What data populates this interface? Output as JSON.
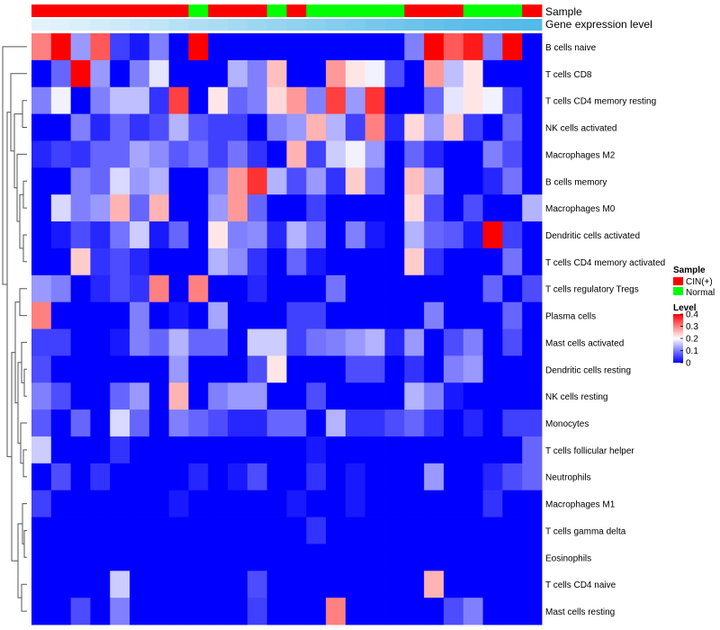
{
  "chart_data": {
    "type": "heatmap",
    "annotation_tracks": [
      "Sample",
      "Gene expression level"
    ],
    "legends": {
      "sample": {
        "title": "Sample",
        "entries": [
          {
            "label": "CIN(+)",
            "color": "#ff0000"
          },
          {
            "label": "Normal",
            "color": "#00ff00"
          }
        ]
      },
      "level": {
        "title": "Level",
        "ticks": [
          "0.4",
          "0.3",
          "0.2",
          "0.1",
          "0"
        ],
        "tick_values": [
          0.4,
          0.3,
          0.2,
          0.1,
          0
        ],
        "range": [
          0,
          0.4
        ],
        "colors": {
          "low": "#0000ff",
          "mid": "#ffffff",
          "high": "#ff0000"
        }
      }
    },
    "sample_groups": [
      "CIN",
      "CIN",
      "CIN",
      "CIN",
      "CIN",
      "CIN",
      "CIN",
      "CIN",
      "Normal",
      "CIN",
      "CIN",
      "CIN",
      "Normal",
      "CIN",
      "Normal",
      "Normal",
      "Normal",
      "Normal",
      "Normal",
      "CIN",
      "CIN",
      "CIN",
      "Normal",
      "Normal",
      "Normal",
      "CIN"
    ],
    "gene_expression_level": [
      0.05,
      0.08,
      0.12,
      0.16,
      0.2,
      0.25,
      0.3,
      0.35,
      0.4,
      0.44,
      0.48,
      0.52,
      0.56,
      0.6,
      0.64,
      0.68,
      0.72,
      0.76,
      0.8,
      0.84,
      0.88,
      0.92,
      0.95,
      0.97,
      0.99,
      1.0
    ],
    "rows": [
      "B cells naive",
      "T cells CD8",
      "T cells CD4 memory resting",
      "NK cells activated",
      "Macrophages M2",
      "B cells memory",
      "Macrophages M0",
      "Dendritic cells activated",
      "T cells CD4 memory activated",
      "T cells regulatory  Tregs",
      "Plasma cells",
      "Mast cells activated",
      "Dendritic cells resting",
      "NK cells resting",
      "Monocytes",
      "T cells follicular helper",
      "Neutrophils",
      "Macrophages M1",
      "T cells gamma delta",
      "Eosinophils",
      "T cells CD4 naive",
      "Mast cells resting"
    ],
    "values": [
      [
        0.3,
        0.4,
        0.12,
        0.33,
        0.05,
        0.02,
        0.1,
        0,
        0.4,
        0,
        0,
        0,
        0,
        0,
        0,
        0,
        0,
        0,
        0,
        0.1,
        0.4,
        0.33,
        0.38,
        0.1,
        0.4,
        0
      ],
      [
        0,
        0.08,
        0.4,
        0.12,
        0,
        0.1,
        0.18,
        0,
        0,
        0,
        0.14,
        0.1,
        0.25,
        0,
        0,
        0.28,
        0.22,
        0.19,
        0.06,
        0,
        0.28,
        0.15,
        0.22,
        0,
        0,
        0
      ],
      [
        0.1,
        0.19,
        0,
        0.1,
        0.15,
        0.15,
        0.04,
        0.35,
        0,
        0.22,
        0.08,
        0.1,
        0.23,
        0.28,
        0.1,
        0.35,
        0.12,
        0.36,
        0,
        0,
        0.08,
        0.18,
        0.22,
        0.19,
        0.05,
        0
      ],
      [
        0,
        0,
        0.1,
        0.03,
        0.08,
        0.04,
        0.06,
        0.14,
        0.07,
        0.05,
        0.05,
        0,
        0.1,
        0.12,
        0.26,
        0.14,
        0.05,
        0.3,
        0.03,
        0.23,
        0.12,
        0.24,
        0.05,
        0,
        0.08,
        0
      ],
      [
        0.03,
        0.05,
        0.04,
        0.08,
        0.08,
        0.13,
        0.11,
        0.07,
        0.09,
        0.05,
        0.09,
        0.04,
        0,
        0.26,
        0.05,
        0.16,
        0.19,
        0.12,
        0,
        0.08,
        0.03,
        0,
        0,
        0.1,
        0.06,
        0
      ],
      [
        0,
        0,
        0.1,
        0.08,
        0.17,
        0.12,
        0.14,
        0,
        0,
        0.1,
        0.28,
        0.36,
        0.14,
        0.06,
        0.12,
        0.04,
        0.24,
        0.08,
        0,
        0.25,
        0.12,
        0,
        0,
        0.03,
        0.09,
        0
      ],
      [
        0,
        0.17,
        0.1,
        0.12,
        0.26,
        0.08,
        0.26,
        0,
        0,
        0.12,
        0.28,
        0.08,
        0,
        0,
        0.05,
        0,
        0,
        0,
        0,
        0.23,
        0.06,
        0,
        0.06,
        0,
        0,
        0.14
      ],
      [
        0,
        0.02,
        0.06,
        0.03,
        0.09,
        0.16,
        0.02,
        0.08,
        0,
        0.22,
        0.1,
        0.11,
        0.03,
        0.14,
        0.09,
        0,
        0.1,
        0.02,
        0,
        0.14,
        0.08,
        0.07,
        0.02,
        0.4,
        0.05,
        0
      ],
      [
        0,
        0,
        0.24,
        0.04,
        0.06,
        0.03,
        0,
        0,
        0,
        0.14,
        0.11,
        0.04,
        0,
        0.08,
        0.02,
        0,
        0,
        0,
        0,
        0.24,
        0.04,
        0,
        0,
        0,
        0.09,
        0
      ],
      [
        0.12,
        0.1,
        0,
        0.03,
        0.06,
        0.04,
        0.3,
        0,
        0.3,
        0,
        0,
        0.03,
        0,
        0,
        0,
        0.09,
        0,
        0,
        0,
        0,
        0,
        0,
        0,
        0.08,
        0,
        0.06
      ],
      [
        0.3,
        0,
        0,
        0,
        0,
        0.1,
        0,
        0.02,
        0,
        0.13,
        0,
        0,
        0,
        0.05,
        0.05,
        0,
        0,
        0,
        0,
        0,
        0.1,
        0,
        0,
        0,
        0.08,
        0
      ],
      [
        0.05,
        0.05,
        0,
        0,
        0.02,
        0.1,
        0.08,
        0.14,
        0.08,
        0.08,
        0,
        0.16,
        0.16,
        0.05,
        0.09,
        0.1,
        0.12,
        0.14,
        0.03,
        0.12,
        0,
        0.06,
        0.1,
        0,
        0.06,
        0
      ],
      [
        0.06,
        0,
        0,
        0,
        0,
        0,
        0,
        0.12,
        0,
        0,
        0,
        0.06,
        0.22,
        0,
        0,
        0,
        0.06,
        0.06,
        0,
        0.04,
        0,
        0.1,
        0.12,
        0,
        0,
        0
      ],
      [
        0.1,
        0.06,
        0,
        0,
        0.08,
        0.12,
        0,
        0.26,
        0,
        0.1,
        0.12,
        0.12,
        0,
        0,
        0.06,
        0,
        0,
        0,
        0,
        0.14,
        0.1,
        0.02,
        0,
        0,
        0,
        0
      ],
      [
        0.07,
        0,
        0.08,
        0,
        0.17,
        0.08,
        0,
        0.1,
        0.08,
        0.06,
        0.03,
        0.03,
        0.08,
        0.08,
        0,
        0.14,
        0.04,
        0.04,
        0.06,
        0.08,
        0.04,
        0,
        0.03,
        0,
        0.05,
        0.05
      ],
      [
        0.16,
        0,
        0,
        0,
        0.04,
        0,
        0,
        0,
        0,
        0,
        0,
        0,
        0,
        0,
        0.02,
        0,
        0,
        0,
        0,
        0,
        0,
        0,
        0,
        0,
        0,
        0.08
      ],
      [
        0,
        0.06,
        0,
        0.04,
        0,
        0,
        0,
        0,
        0.03,
        0,
        0.02,
        0.06,
        0,
        0,
        0.04,
        0,
        0.02,
        0,
        0,
        0,
        0.12,
        0,
        0,
        0.03,
        0.06,
        0.08
      ],
      [
        0.05,
        0,
        0,
        0,
        0,
        0,
        0,
        0.02,
        0,
        0,
        0,
        0,
        0,
        0.02,
        0,
        0,
        0.02,
        0,
        0,
        0,
        0,
        0,
        0,
        0.04,
        0,
        0
      ],
      [
        0,
        0,
        0,
        0,
        0,
        0,
        0,
        0,
        0,
        0,
        0,
        0,
        0,
        0,
        0.04,
        0,
        0,
        0,
        0,
        0,
        0,
        0,
        0,
        0,
        0,
        0
      ],
      [
        0,
        0,
        0,
        0,
        0,
        0,
        0,
        0,
        0,
        0,
        0,
        0,
        0,
        0,
        0,
        0,
        0,
        0,
        0,
        0,
        0,
        0,
        0,
        0,
        0,
        0
      ],
      [
        0,
        0,
        0,
        0,
        0.16,
        0,
        0,
        0,
        0,
        0,
        0,
        0.06,
        0,
        0,
        0,
        0,
        0,
        0,
        0,
        0,
        0.26,
        0,
        0,
        0,
        0,
        0
      ],
      [
        0,
        0,
        0.06,
        0,
        0.1,
        0,
        0,
        0,
        0,
        0,
        0,
        0.05,
        0,
        0,
        0,
        0.3,
        0,
        0,
        0,
        0,
        0,
        0.06,
        0.1,
        0,
        0,
        0
      ]
    ]
  }
}
